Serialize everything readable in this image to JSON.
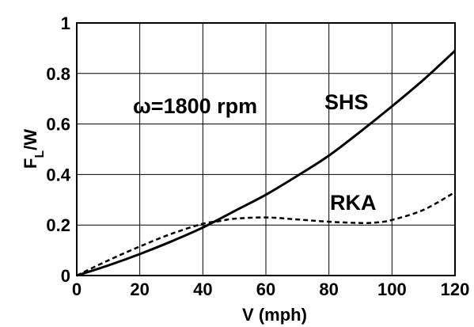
{
  "chart_data": {
    "type": "line",
    "xlabel": "V (mph)",
    "ylabel_main": "F",
    "ylabel_sub": "L",
    "ylabel_rest": "/W",
    "xlim": [
      0,
      120
    ],
    "ylim": [
      0,
      1
    ],
    "xticks": [
      0,
      20,
      40,
      60,
      80,
      100,
      120
    ],
    "yticks": [
      0,
      0.2,
      0.4,
      0.6,
      0.8,
      1
    ],
    "ytick_labels": [
      "0",
      "0.2",
      "0.4",
      "0.6",
      "0.8",
      "1"
    ],
    "xtick_labels": [
      "0",
      "20",
      "40",
      "60",
      "80",
      "100",
      "120"
    ],
    "grid": true,
    "annotations": {
      "omega": "ω=1800 rpm",
      "shs": "SHS",
      "rka": "RKA"
    },
    "series": [
      {
        "name": "SHS",
        "style": "solid",
        "x": [
          0,
          10,
          20,
          30,
          40,
          50,
          60,
          70,
          80,
          90,
          100,
          110,
          120
        ],
        "y": [
          0,
          0.04,
          0.085,
          0.135,
          0.19,
          0.255,
          0.32,
          0.395,
          0.475,
          0.57,
          0.67,
          0.775,
          0.89
        ]
      },
      {
        "name": "RKA",
        "style": "dashed",
        "x": [
          0,
          10,
          20,
          30,
          40,
          45,
          50,
          60,
          70,
          80,
          90,
          95,
          100,
          110,
          120
        ],
        "y": [
          0,
          0.06,
          0.115,
          0.165,
          0.205,
          0.215,
          0.225,
          0.23,
          0.222,
          0.213,
          0.208,
          0.21,
          0.22,
          0.26,
          0.33
        ]
      }
    ]
  }
}
